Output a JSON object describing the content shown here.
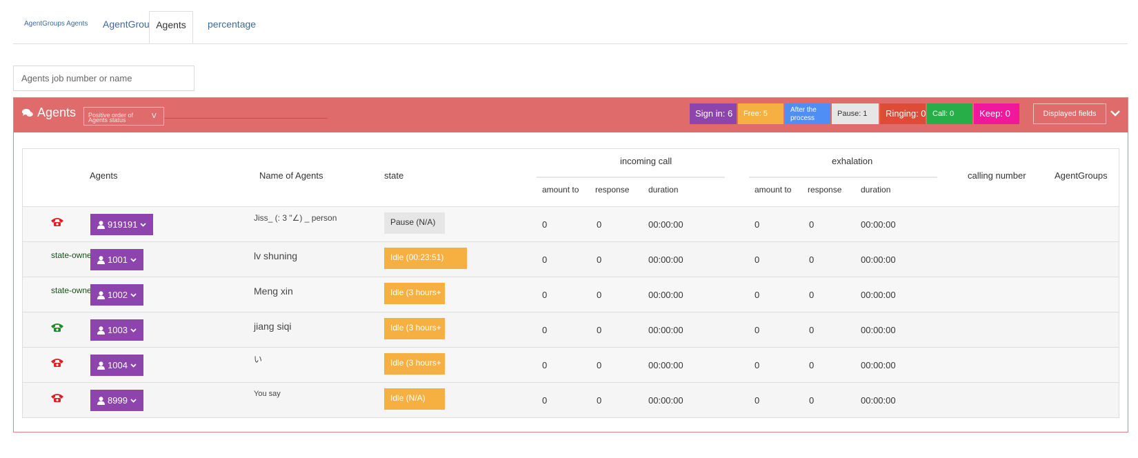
{
  "tabs": {
    "crumb": "AgentGroups Agents",
    "agentgroups": "AgentGroups",
    "agents": "Agents",
    "percentage": "percentage"
  },
  "search": {
    "placeholder": "Agents job number or name"
  },
  "panel": {
    "title": "Agents",
    "sort_line1": "Positive order of",
    "sort_line2": "Agents status",
    "sort_value": "V",
    "badges": {
      "sign_in": "Sign in: 6",
      "free": "Free: 5",
      "after": "After the\nprocess",
      "pause": "Pause: 1",
      "ringing": "Ringing: 0",
      "call": "Call: 0",
      "keep": "Keep: 0"
    },
    "displayed_fields": "Displayed fields"
  },
  "colors": {
    "header_bg": "#e06b6b",
    "agent_purple": "#8e44ad",
    "idle_orange": "#f5b041",
    "phone_red": "#e02020",
    "phone_green": "#1e8a2e"
  },
  "table": {
    "headers": {
      "agents": "Agents",
      "name": "Name of Agents",
      "state": "state",
      "incoming": "incoming call",
      "exhalation": "exhalation",
      "in_amount": "amount to",
      "in_response": "response",
      "in_duration": "duration",
      "ex_amount": "amount to",
      "ex_response": "response",
      "ex_duration": "duration",
      "calling_number": "calling number",
      "agent_groups": "AgentGroups"
    },
    "rows": [
      {
        "indicator": "phone-red-icon",
        "label": "",
        "agent": "919191",
        "name": "Jiss_ (: 3 \"∠) _ person",
        "state": "Pause (N/A)",
        "in_amount": "0",
        "in_response": "0",
        "in_duration": "00:00:00",
        "ex_amount": "0",
        "ex_response": "0",
        "ex_duration": "00:00:00"
      },
      {
        "indicator": "none",
        "label": "state-owned",
        "agent": "1001",
        "name": "lv shuning",
        "state": "Idle (00:23:51)",
        "in_amount": "0",
        "in_response": "0",
        "in_duration": "00:00:00",
        "ex_amount": "0",
        "ex_response": "0",
        "ex_duration": "00:00:00"
      },
      {
        "indicator": "none",
        "label": "state-owned",
        "agent": "1002",
        "name": "Meng xin",
        "state": "Idle (3 hours+",
        "in_amount": "0",
        "in_response": "0",
        "in_duration": "00:00:00",
        "ex_amount": "0",
        "ex_response": "0",
        "ex_duration": "00:00:00"
      },
      {
        "indicator": "phone-green-icon",
        "label": "",
        "agent": "1003",
        "name": "jiang siqi",
        "state": "Idle (3 hours+",
        "in_amount": "0",
        "in_response": "0",
        "in_duration": "00:00:00",
        "ex_amount": "0",
        "ex_response": "0",
        "ex_duration": "00:00:00"
      },
      {
        "indicator": "phone-red-icon",
        "label": "",
        "agent": "1004",
        "name": "い",
        "state": "Idle (3 hours+",
        "in_amount": "0",
        "in_response": "0",
        "in_duration": "00:00:00",
        "ex_amount": "0",
        "ex_response": "0",
        "ex_duration": "00:00:00"
      },
      {
        "indicator": "phone-red-icon",
        "label": "",
        "agent": "8999",
        "name": "You say",
        "state": "Idle (N/A)",
        "in_amount": "0",
        "in_response": "0",
        "in_duration": "00:00:00",
        "ex_amount": "0",
        "ex_response": "0",
        "ex_duration": "00:00:00"
      }
    ]
  }
}
